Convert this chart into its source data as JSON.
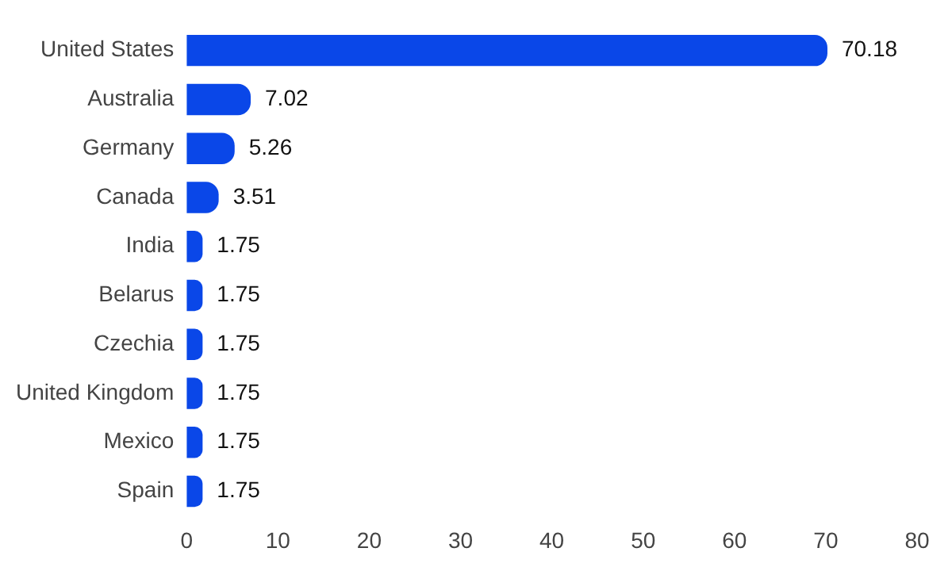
{
  "chart_data": {
    "type": "bar",
    "orientation": "horizontal",
    "categories": [
      "United States",
      "Australia",
      "Germany",
      "Canada",
      "India",
      "Belarus",
      "Czechia",
      "United Kingdom",
      "Mexico",
      "Spain"
    ],
    "values": [
      70.18,
      7.02,
      5.26,
      3.51,
      1.75,
      1.75,
      1.75,
      1.75,
      1.75,
      1.75
    ],
    "color": "#0a47e8",
    "xlim": [
      0,
      80
    ],
    "xticks": [
      0,
      10,
      20,
      30,
      40,
      50,
      60,
      70,
      80
    ],
    "grid": false,
    "data_labels": true
  }
}
